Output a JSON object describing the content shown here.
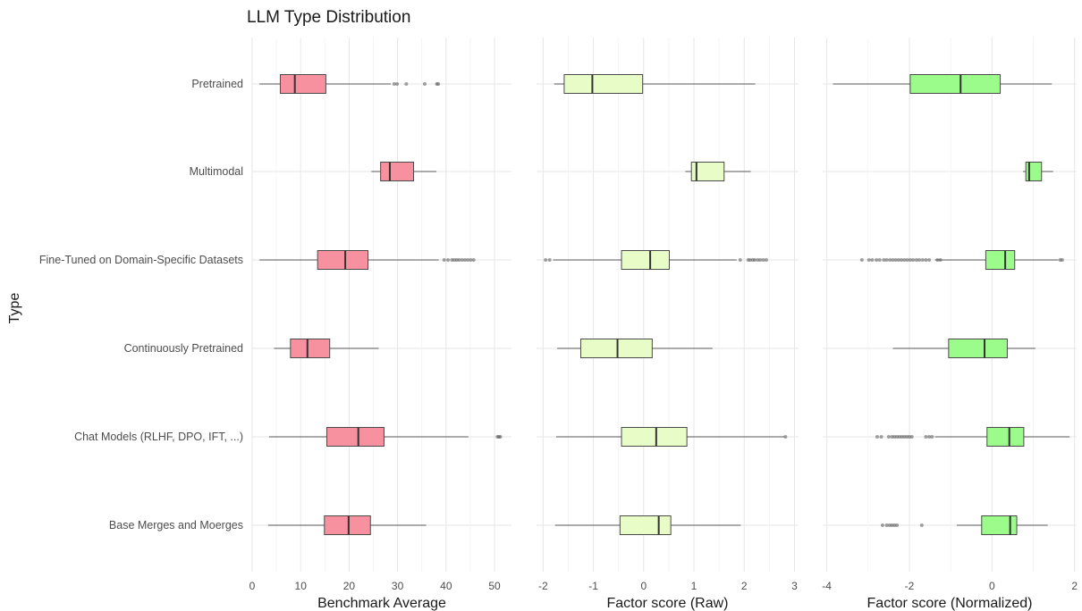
{
  "chart_data": {
    "type": "boxplot",
    "title": "LLM Type Distribution",
    "ylabel": "Type",
    "categories": [
      "Pretrained",
      "Multimodal",
      "Fine-Tuned on Domain-Specific Datasets",
      "Continuously Pretrained",
      "Chat Models (RLHF, DPO, IFT, ...)",
      "Base Merges and Moerges"
    ],
    "panels": [
      {
        "xlabel": "Benchmark Average",
        "xlim": [
          0,
          53.5
        ],
        "ticks": [
          0,
          10,
          20,
          30,
          40,
          50
        ],
        "color": "#f7919f",
        "boxes": [
          {
            "min": 1.5,
            "q1": 5.8,
            "median": 8.8,
            "q3": 15.2,
            "max": 28.6,
            "outliers": [
              29.3,
              29.9,
              31.8,
              35.6,
              38.1,
              38.4
            ]
          },
          {
            "min": 24.6,
            "q1": 26.5,
            "median": 28.4,
            "q3": 33.3,
            "max": 38.0,
            "outliers": []
          },
          {
            "min": 1.5,
            "q1": 13.5,
            "median": 19.2,
            "q3": 23.9,
            "max": 38.5,
            "outliers": [
              39.6,
              40.4,
              41.2,
              41.7,
              42.2,
              42.7,
              43.3,
              43.9,
              44.5,
              45.1,
              45.7
            ]
          },
          {
            "min": 4.5,
            "q1": 7.9,
            "median": 11.4,
            "q3": 16.0,
            "max": 26.1,
            "outliers": []
          },
          {
            "min": 3.5,
            "q1": 15.4,
            "median": 21.9,
            "q3": 27.2,
            "max": 44.6,
            "outliers": [
              50.6,
              50.9,
              51.2
            ]
          },
          {
            "min": 3.3,
            "q1": 14.9,
            "median": 19.9,
            "q3": 24.4,
            "max": 35.9,
            "outliers": []
          }
        ]
      },
      {
        "xlabel": "Factor score (Raw)",
        "xlim": [
          -2.13,
          3.08
        ],
        "ticks": [
          -2,
          -1,
          0,
          1,
          2,
          3
        ],
        "color": "#e8fcc8",
        "boxes": [
          {
            "min": -1.78,
            "q1": -1.58,
            "median": -1.02,
            "q3": -0.02,
            "max": 2.22,
            "outliers": []
          },
          {
            "min": 0.83,
            "q1": 0.95,
            "median": 1.05,
            "q3": 1.6,
            "max": 2.13,
            "outliers": []
          },
          {
            "min": -1.8,
            "q1": -0.44,
            "median": 0.13,
            "q3": 0.51,
            "max": 1.85,
            "outliers": [
              -1.95,
              -1.87,
              1.92,
              2.08,
              2.12,
              2.17,
              2.21,
              2.27,
              2.32,
              2.38,
              2.44
            ]
          },
          {
            "min": -1.72,
            "q1": -1.25,
            "median": -0.52,
            "q3": 0.17,
            "max": 1.37,
            "outliers": []
          },
          {
            "min": -1.74,
            "q1": -0.44,
            "median": 0.25,
            "q3": 0.86,
            "max": 2.8,
            "outliers": [
              2.82
            ]
          },
          {
            "min": -1.76,
            "q1": -0.47,
            "median": 0.3,
            "q3": 0.54,
            "max": 1.93,
            "outliers": []
          }
        ]
      },
      {
        "xlabel": "Factor score (Normalized)",
        "xlim": [
          -4.1,
          2.05
        ],
        "ticks": [
          -4,
          -2,
          0,
          2
        ],
        "color": "#9bfc8c",
        "boxes": [
          {
            "min": -3.85,
            "q1": -1.98,
            "median": -0.76,
            "q3": 0.2,
            "max": 1.45,
            "outliers": []
          },
          {
            "min": 0.75,
            "q1": 0.82,
            "median": 0.9,
            "q3": 1.2,
            "max": 1.48,
            "outliers": []
          },
          {
            "min": -1.38,
            "q1": -0.15,
            "median": 0.32,
            "q3": 0.55,
            "max": 1.6,
            "outliers": [
              -3.15,
              -2.98,
              -2.9,
              -2.8,
              -2.72,
              -2.62,
              -2.55,
              -2.47,
              -2.4,
              -2.33,
              -2.26,
              -2.19,
              -2.12,
              -2.05,
              -1.98,
              -1.91,
              -1.83,
              -1.76,
              -1.68,
              -1.6,
              -1.52,
              -1.32,
              -1.25,
              1.65,
              1.7
            ]
          },
          {
            "min": -2.4,
            "q1": -1.05,
            "median": -0.18,
            "q3": 0.37,
            "max": 1.05,
            "outliers": []
          },
          {
            "min": -1.38,
            "q1": -0.12,
            "median": 0.42,
            "q3": 0.77,
            "max": 1.88,
            "outliers": [
              -2.78,
              -2.68,
              -2.5,
              -2.42,
              -2.36,
              -2.3,
              -2.24,
              -2.18,
              -2.12,
              -2.06,
              -2.0,
              -1.94,
              -1.6,
              -1.52,
              -1.45
            ]
          },
          {
            "min": -0.85,
            "q1": -0.25,
            "median": 0.44,
            "q3": 0.6,
            "max": 1.35,
            "outliers": [
              -2.65,
              -2.55,
              -2.48,
              -2.42,
              -2.36,
              -2.3,
              -1.7
            ]
          }
        ]
      }
    ]
  }
}
